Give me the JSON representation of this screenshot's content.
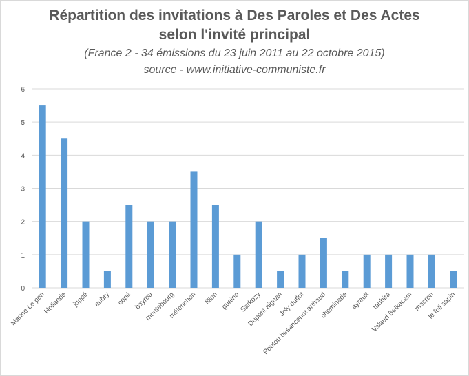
{
  "chart_data": {
    "type": "bar",
    "title": "Répartition des invitations à Des Paroles et Des Actes",
    "title_line2": "selon l'invité principal",
    "subtitle": "(France 2 - 34 émissions du 23 juin 2011 au 22 octobre 2015)",
    "source": "source - www.initiative-communiste.fr",
    "categories": [
      "Marine Le pen",
      "Hollande",
      "juppé",
      "aubry",
      "copé",
      "bayrou",
      "montebourg",
      "mélenchon",
      "fillon",
      "guaino",
      "Sarkozy",
      "Dupont aignan",
      "Joly duflot",
      "Poutou besancenot arthaud",
      "cheminade",
      "ayrault",
      "taubira",
      "Valaud Belkacem",
      "macron",
      "le foll sapin"
    ],
    "values": [
      5.5,
      4.5,
      2,
      0.5,
      2.5,
      2,
      2,
      3.5,
      2.5,
      1,
      2,
      0.5,
      1,
      1.5,
      0.5,
      1,
      1,
      1,
      1,
      0.5
    ],
    "ylim": [
      0,
      6
    ],
    "yticks": [
      0,
      1,
      2,
      3,
      4,
      5,
      6
    ],
    "grid": true,
    "bar_color": "#5b9bd5",
    "grid_color": "#d9d9d9"
  }
}
